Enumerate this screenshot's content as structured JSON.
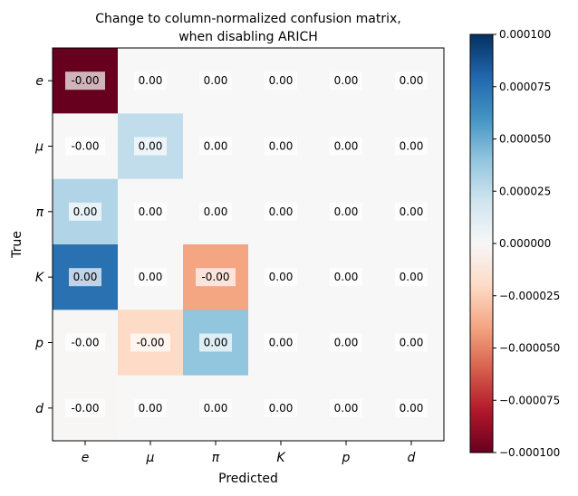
{
  "chart_data": {
    "type": "heatmap",
    "title_line1": "Change to column-normalized confusion matrix,",
    "title_line2": "when disabling ARICH",
    "xlabel": "Predicted",
    "ylabel": "True",
    "x_categories": [
      "e",
      "μ",
      "π",
      "K",
      "p",
      "d"
    ],
    "y_categories": [
      "e",
      "μ",
      "π",
      "K",
      "p",
      "d"
    ],
    "values": [
      [
        -0.0001,
        0.0,
        0.0,
        0.0,
        0.0,
        0.0
      ],
      [
        0.0,
        2.5e-05,
        0.0,
        0.0,
        0.0,
        0.0
      ],
      [
        3e-05,
        0.0,
        0.0,
        0.0,
        0.0,
        0.0
      ],
      [
        7.5e-05,
        0.0,
        -4e-05,
        0.0,
        0.0,
        0.0
      ],
      [
        -1e-06,
        -2e-05,
        4e-05,
        0.0,
        0.0,
        0.0
      ],
      [
        -1e-06,
        0.0,
        0.0,
        0.0,
        0.0,
        0.0
      ]
    ],
    "cell_labels": [
      [
        "-0.00",
        "0.00",
        "0.00",
        "0.00",
        "0.00",
        "0.00"
      ],
      [
        "-0.00",
        "0.00",
        "0.00",
        "0.00",
        "0.00",
        "0.00"
      ],
      [
        "0.00",
        "0.00",
        "0.00",
        "0.00",
        "0.00",
        "0.00"
      ],
      [
        "0.00",
        "0.00",
        "-0.00",
        "0.00",
        "0.00",
        "0.00"
      ],
      [
        "-0.00",
        "-0.00",
        "0.00",
        "0.00",
        "0.00",
        "0.00"
      ],
      [
        "-0.00",
        "0.00",
        "0.00",
        "0.00",
        "0.00",
        "0.00"
      ]
    ],
    "colormap": "RdBu",
    "vmin": -0.0001,
    "vmax": 0.0001,
    "colorbar_ticks": [
      0.0001,
      7.5e-05,
      5e-05,
      2.5e-05,
      0.0,
      -2.5e-05,
      -5e-05,
      -7.5e-05,
      -0.0001
    ],
    "colorbar_tick_labels": [
      "0.000100",
      "0.000075",
      "0.000050",
      "0.000025",
      "0.000000",
      "−0.000025",
      "−0.000050",
      "−0.000075",
      "−0.000100"
    ]
  }
}
